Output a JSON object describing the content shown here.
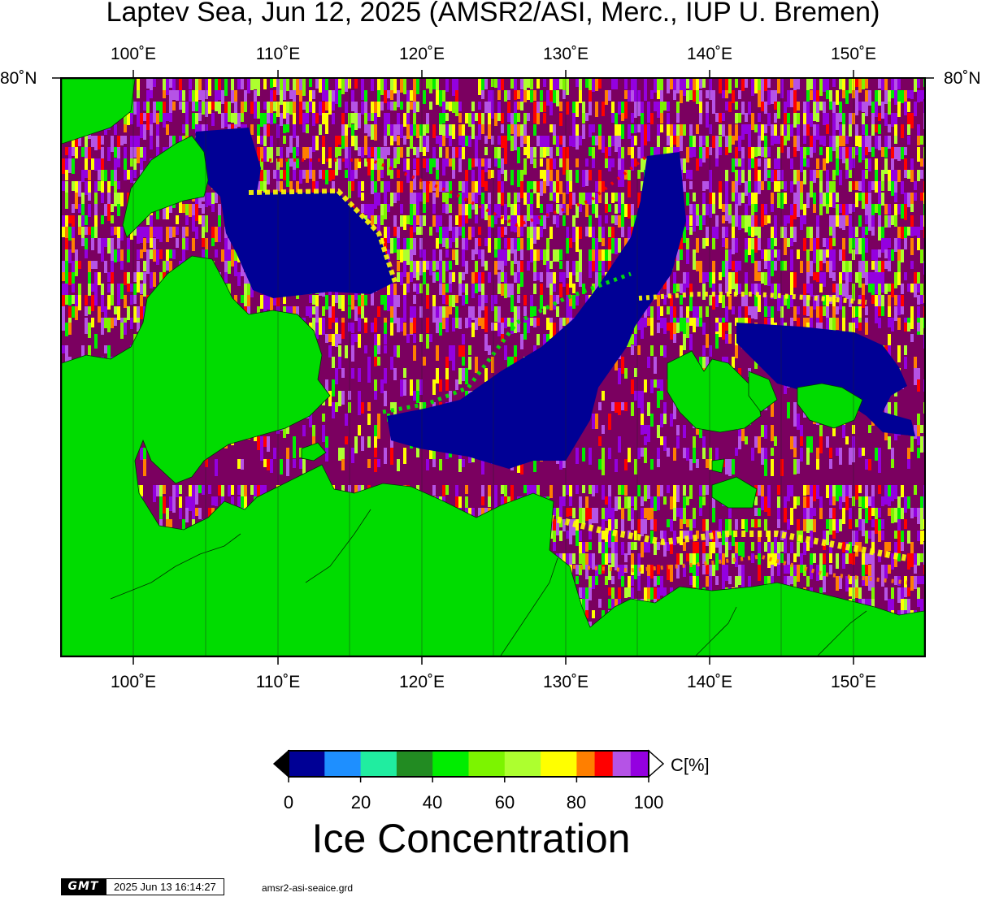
{
  "title": "Laptev Sea, Jun 12, 2025 (AMSR2/ASI, Merc., IUP U. Bremen)",
  "longitude_labels": [
    "100˚E",
    "110˚E",
    "120˚E",
    "130˚E",
    "140˚E",
    "150˚E"
  ],
  "latitude_label": "80˚N",
  "colorbar": {
    "unit_label": "C[%]",
    "tick_labels": [
      "0",
      "20",
      "40",
      "60",
      "80",
      "100"
    ],
    "title": "Ice Concentration",
    "colors": [
      "#000095",
      "#1e8fff",
      "#20eda0",
      "#228b22",
      "#00ed00",
      "#7cf400",
      "#adff2f",
      "#ffff00",
      "#ff7f00",
      "#ff0000",
      "#b553e6",
      "#9400e0"
    ],
    "underflow_color": "#000000",
    "overflow_color": "#ffffff"
  },
  "map_colors": {
    "land": "#00dc00",
    "open_water": "#000095",
    "full_ice": "#7b0060"
  },
  "footer": {
    "logo_text": "GMT",
    "timestamp": "2025 Jun 13 16:14:27",
    "filename": "amsr2-asi-seaice.grd"
  }
}
